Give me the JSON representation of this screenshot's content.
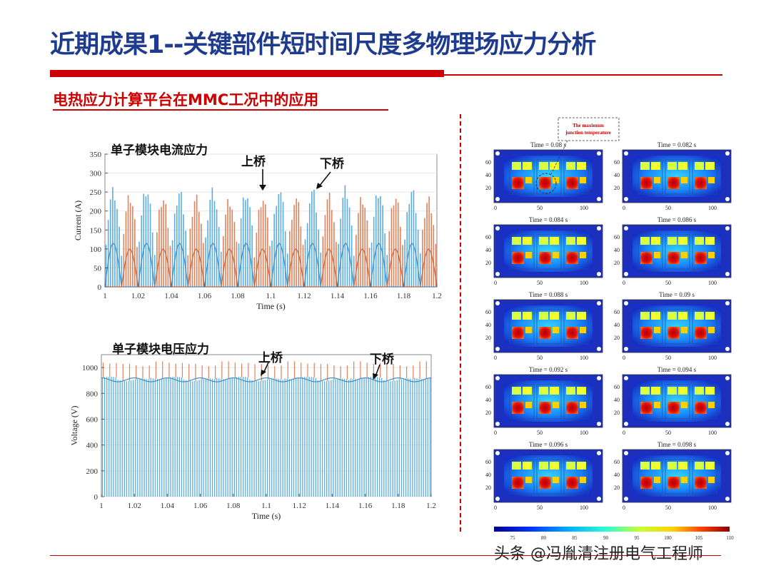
{
  "header": {
    "title": "近期成果1--关键部件短时间尺度多物理场应力分析",
    "subtitle": "电热应力计算平台在MMC工况中的应用"
  },
  "current_plot": {
    "title": "单子模块电流应力",
    "upper_label": "上桥",
    "lower_label": "下桥",
    "xlabel": "Time (s)",
    "ylabel": "Current (A)",
    "xticks": [
      "1",
      "1.02",
      "1.04",
      "1.06",
      "1.08",
      "1.1",
      "1.12",
      "1.14",
      "1.16",
      "1.18",
      "1.2"
    ],
    "yticks": [
      "0",
      "50",
      "100",
      "150",
      "200",
      "250",
      "300",
      "350"
    ]
  },
  "voltage_plot": {
    "title": "单子模块电压应力",
    "upper_label": "上桥",
    "lower_label": "下桥",
    "xlabel": "Time (s)",
    "ylabel": "Voltage (V)",
    "xticks": [
      "1",
      "1.02",
      "1.04",
      "1.06",
      "1.08",
      "1.1",
      "1.12",
      "1.14",
      "1.16",
      "1.18",
      "1.2"
    ],
    "yticks": [
      "0",
      "200",
      "400",
      "600",
      "800",
      "1000"
    ]
  },
  "thermal": {
    "annotation": [
      "The maximum",
      "junction temperature"
    ],
    "panels": [
      {
        "time": "Time = 0.08 s"
      },
      {
        "time": "Time = 0.082 s"
      },
      {
        "time": "Time = 0.084 s"
      },
      {
        "time": "Time = 0.086 s"
      },
      {
        "time": "Time = 0.088 s"
      },
      {
        "time": "Time = 0.09 s"
      },
      {
        "time": "Time = 0.092 s"
      },
      {
        "time": "Time = 0.094 s"
      },
      {
        "time": "Time = 0.096 s"
      },
      {
        "time": "Time = 0.098 s"
      }
    ],
    "yticks": [
      "20",
      "40",
      "60"
    ],
    "xticks": [
      "0",
      "50",
      "100"
    ],
    "colorbar_ticks": [
      "75",
      "80",
      "85",
      "90",
      "95",
      "100",
      "105",
      "110"
    ]
  },
  "footer": {
    "watermark": "头条 @冯胤清注册电气工程师"
  },
  "colors": {
    "title_blue": "#1f3b8e",
    "accent_red": "#cc0000",
    "upper_series": "#5aaee0",
    "lower_series": "#e0825a"
  },
  "chart_data": [
    {
      "type": "line",
      "title": "单子模块电流应力",
      "xlabel": "Time (s)",
      "ylabel": "Current (A)",
      "xlim": [
        1,
        1.2
      ],
      "ylim": [
        0,
        350
      ],
      "series": [
        {
          "name": "上桥",
          "x": [
            1.0,
            1.02,
            1.04,
            1.06,
            1.08,
            1.1,
            1.12,
            1.14,
            1.16,
            1.18,
            1.2
          ],
          "values": [
            270,
            275,
            270,
            275,
            270,
            275,
            270,
            275,
            270,
            275,
            270
          ]
        },
        {
          "name": "下桥",
          "x": [
            1.0,
            1.02,
            1.04,
            1.06,
            1.08,
            1.1,
            1.12,
            1.14,
            1.16,
            1.18,
            1.2
          ],
          "values": [
            250,
            255,
            250,
            255,
            250,
            255,
            250,
            255,
            250,
            255,
            250
          ]
        }
      ]
    },
    {
      "type": "line",
      "title": "单子模块电压应力",
      "xlabel": "Time (s)",
      "ylabel": "Voltage (V)",
      "xlim": [
        1,
        1.2
      ],
      "ylim": [
        0,
        1100
      ],
      "series": [
        {
          "name": "上桥",
          "x": [
            1.0,
            1.02,
            1.04,
            1.06,
            1.08,
            1.1,
            1.12,
            1.14,
            1.16,
            1.18,
            1.2
          ],
          "values": [
            920,
            905,
            920,
            905,
            920,
            905,
            920,
            905,
            920,
            905,
            920
          ]
        },
        {
          "name": "下桥",
          "x": [
            1.0,
            1.02,
            1.04,
            1.06,
            1.08,
            1.1,
            1.12,
            1.14,
            1.16,
            1.18,
            1.2
          ],
          "values": [
            1040,
            1020,
            1040,
            1020,
            1040,
            1020,
            1040,
            1020,
            1040,
            1020,
            1040
          ]
        }
      ]
    }
  ]
}
